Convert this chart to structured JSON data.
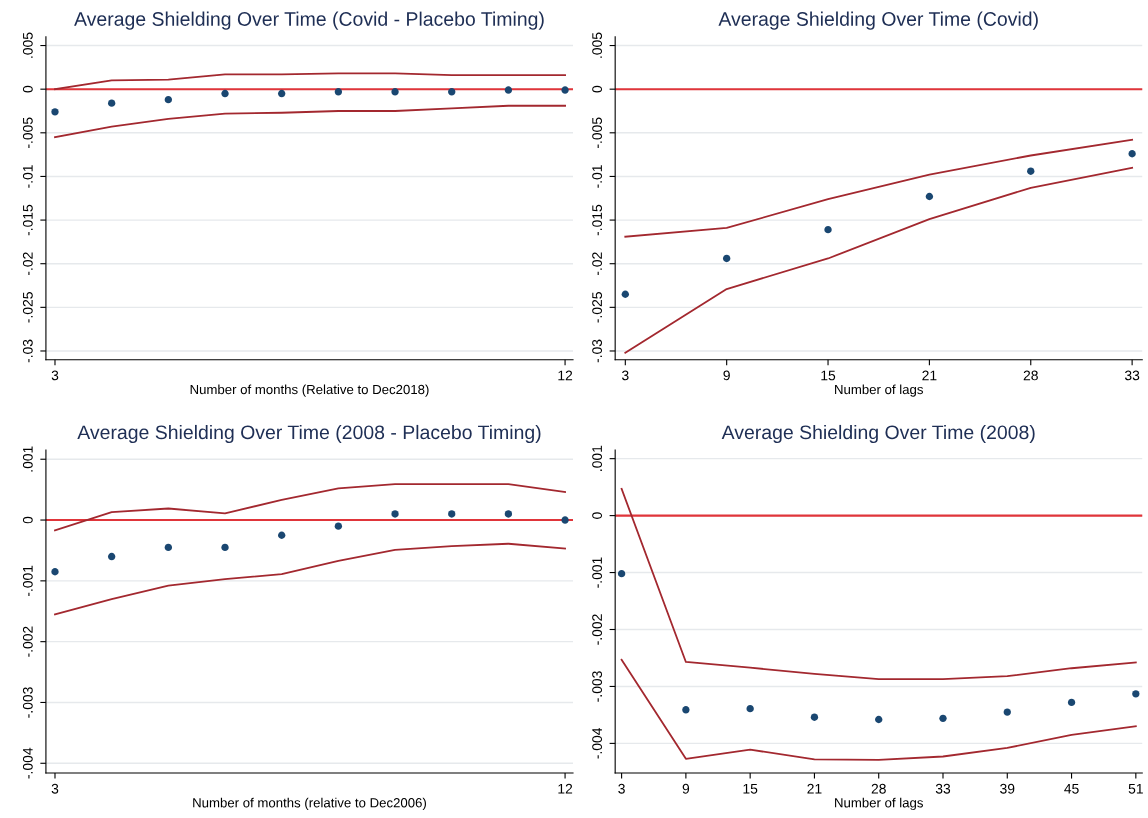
{
  "chart_data": [
    {
      "type": "scatter",
      "title": "Average Shielding Over Time (Covid - Placebo Timing)",
      "xlabel": "Number of months (Relative to Dec2018)",
      "x": [
        3,
        4,
        5,
        6,
        7,
        8,
        9,
        10,
        11,
        12
      ],
      "xlim": [
        2.84,
        12.14
      ],
      "xticks": [
        3,
        12
      ],
      "ylim": [
        -0.031,
        0.006
      ],
      "yticks": [
        {
          "value": 0.005,
          "label": ".005"
        },
        0,
        {
          "value": -0.005,
          "label": "-.005"
        },
        {
          "value": -0.01,
          "label": "-.01"
        },
        {
          "value": -0.015,
          "label": "-.015"
        },
        {
          "value": -0.02,
          "label": "-.02"
        },
        {
          "value": -0.025,
          "label": "-.025"
        },
        {
          "value": -0.03,
          "label": "-.03"
        }
      ],
      "grid": "y",
      "series": [
        {
          "type": "line",
          "color": "#a3282f",
          "values": [
            0,
            0.001,
            0.0011,
            0.0017,
            0.0017,
            0.0018,
            0.0018,
            0.0016,
            0.0016,
            0.0016
          ]
        },
        {
          "type": "line",
          "color": "#a3282f",
          "values": [
            -0.0055,
            -0.0043,
            -0.0034,
            -0.0028,
            -0.0027,
            -0.0025,
            -0.0025,
            -0.0022,
            -0.0019,
            -0.0019
          ]
        },
        {
          "color": "#1a4771",
          "marker": "circle",
          "values": [
            -0.0026,
            -0.0016,
            -0.0012,
            -0.0005,
            -0.0005,
            -0.0003,
            -0.0003,
            -0.0003,
            -0.0001,
            -0.0001
          ]
        }
      ],
      "ref_lines": [
        {
          "axis": "y",
          "value": 0,
          "color": "#e0353a"
        }
      ]
    },
    {
      "type": "scatter",
      "title": "Average Shielding Over Time (Covid)",
      "xlabel": "Number of lags",
      "categories": [
        "3",
        "9",
        "15",
        "21",
        "28",
        "33"
      ],
      "ylim": [
        -0.031,
        0.006
      ],
      "yticks": [
        {
          "value": 0.005,
          "label": ".005"
        },
        0,
        {
          "value": -0.005,
          "label": "-.005"
        },
        {
          "value": -0.01,
          "label": "-.01"
        },
        {
          "value": -0.015,
          "label": "-.015"
        },
        {
          "value": -0.02,
          "label": "-.02"
        },
        {
          "value": -0.025,
          "label": "-.025"
        },
        {
          "value": -0.03,
          "label": "-.03"
        }
      ],
      "grid": "y",
      "series": [
        {
          "type": "line",
          "color": "#a3282f",
          "values": [
            -0.0169,
            -0.0159,
            -0.0126,
            -0.0098,
            -0.0076,
            -0.0058
          ]
        },
        {
          "type": "line",
          "color": "#a3282f",
          "values": [
            -0.0302,
            -0.0229,
            -0.0194,
            -0.0149,
            -0.0113,
            -0.009
          ]
        },
        {
          "color": "#1a4771",
          "marker": "circle",
          "values": [
            -0.0235,
            -0.0194,
            -0.0161,
            -0.0123,
            -0.0094,
            -0.0074
          ]
        }
      ],
      "ref_lines": [
        {
          "axis": "y",
          "value": 0,
          "color": "#e0353a"
        }
      ]
    },
    {
      "type": "scatter",
      "title": "Average Shielding Over Time (2008 - Placebo Timing)",
      "xlabel": "Number of months (relative to Dec2006)",
      "x": [
        3,
        4,
        5,
        6,
        7,
        8,
        9,
        10,
        11,
        12
      ],
      "xlim": [
        2.84,
        12.14
      ],
      "xticks": [
        3,
        12
      ],
      "ylim": [
        -0.00416,
        0.00115
      ],
      "yticks": [
        {
          "value": 0.001,
          "label": ".001"
        },
        0,
        {
          "value": -0.001,
          "label": "-.001"
        },
        {
          "value": -0.002,
          "label": "-.002"
        },
        {
          "value": -0.003,
          "label": "-.003"
        },
        {
          "value": -0.004,
          "label": "-.004"
        }
      ],
      "grid": "y",
      "series": [
        {
          "type": "line",
          "color": "#a3282f",
          "values": [
            -0.00017,
            0.00013,
            0.00019,
            0.00011,
            0.00033,
            0.00052,
            0.00059,
            0.00059,
            0.00059,
            0.00046
          ]
        },
        {
          "type": "line",
          "color": "#a3282f",
          "values": [
            -0.00155,
            -0.0013,
            -0.00108,
            -0.00097,
            -0.00089,
            -0.00067,
            -0.00049,
            -0.00043,
            -0.00039,
            -0.00047
          ]
        },
        {
          "color": "#1a4771",
          "marker": "circle",
          "values": [
            -0.00085,
            -0.0006,
            -0.00045,
            -0.00045,
            -0.00025,
            -0.0001,
            0.0001,
            0.0001,
            0.0001,
            0
          ]
        }
      ],
      "ref_lines": [
        {
          "axis": "y",
          "value": 0,
          "color": "#e0353a"
        }
      ]
    },
    {
      "type": "scatter",
      "title": "Average Shielding Over Time (2008)",
      "xlabel": "Number of lags",
      "categories": [
        "3",
        "9",
        "15",
        "21",
        "28",
        "33",
        "39",
        "45",
        "51"
      ],
      "ylim": [
        -0.00452,
        0.00115
      ],
      "yticks": [
        {
          "value": 0.001,
          "label": ".001"
        },
        0,
        {
          "value": -0.001,
          "label": "-.001"
        },
        {
          "value": -0.002,
          "label": "-.002"
        },
        {
          "value": -0.003,
          "label": "-.003"
        },
        {
          "value": -0.004,
          "label": "-.004"
        }
      ],
      "grid": "y",
      "series": [
        {
          "type": "line",
          "color": "#a3282f",
          "values": [
            0.00047,
            -0.00257,
            -0.00267,
            -0.00278,
            -0.00287,
            -0.00287,
            -0.00282,
            -0.00268,
            -0.00258
          ]
        },
        {
          "type": "line",
          "color": "#a3282f",
          "values": [
            -0.00253,
            -0.00427,
            -0.00411,
            -0.00428,
            -0.00429,
            -0.00423,
            -0.00408,
            -0.00385,
            -0.0037
          ]
        },
        {
          "color": "#1a4771",
          "marker": "circle",
          "values": [
            -0.00102,
            -0.00341,
            -0.00339,
            -0.00354,
            -0.00358,
            -0.00356,
            -0.00345,
            -0.00328,
            -0.00313
          ]
        }
      ],
      "ref_lines": [
        {
          "axis": "y",
          "value": 0,
          "color": "#e0353a"
        }
      ]
    }
  ]
}
